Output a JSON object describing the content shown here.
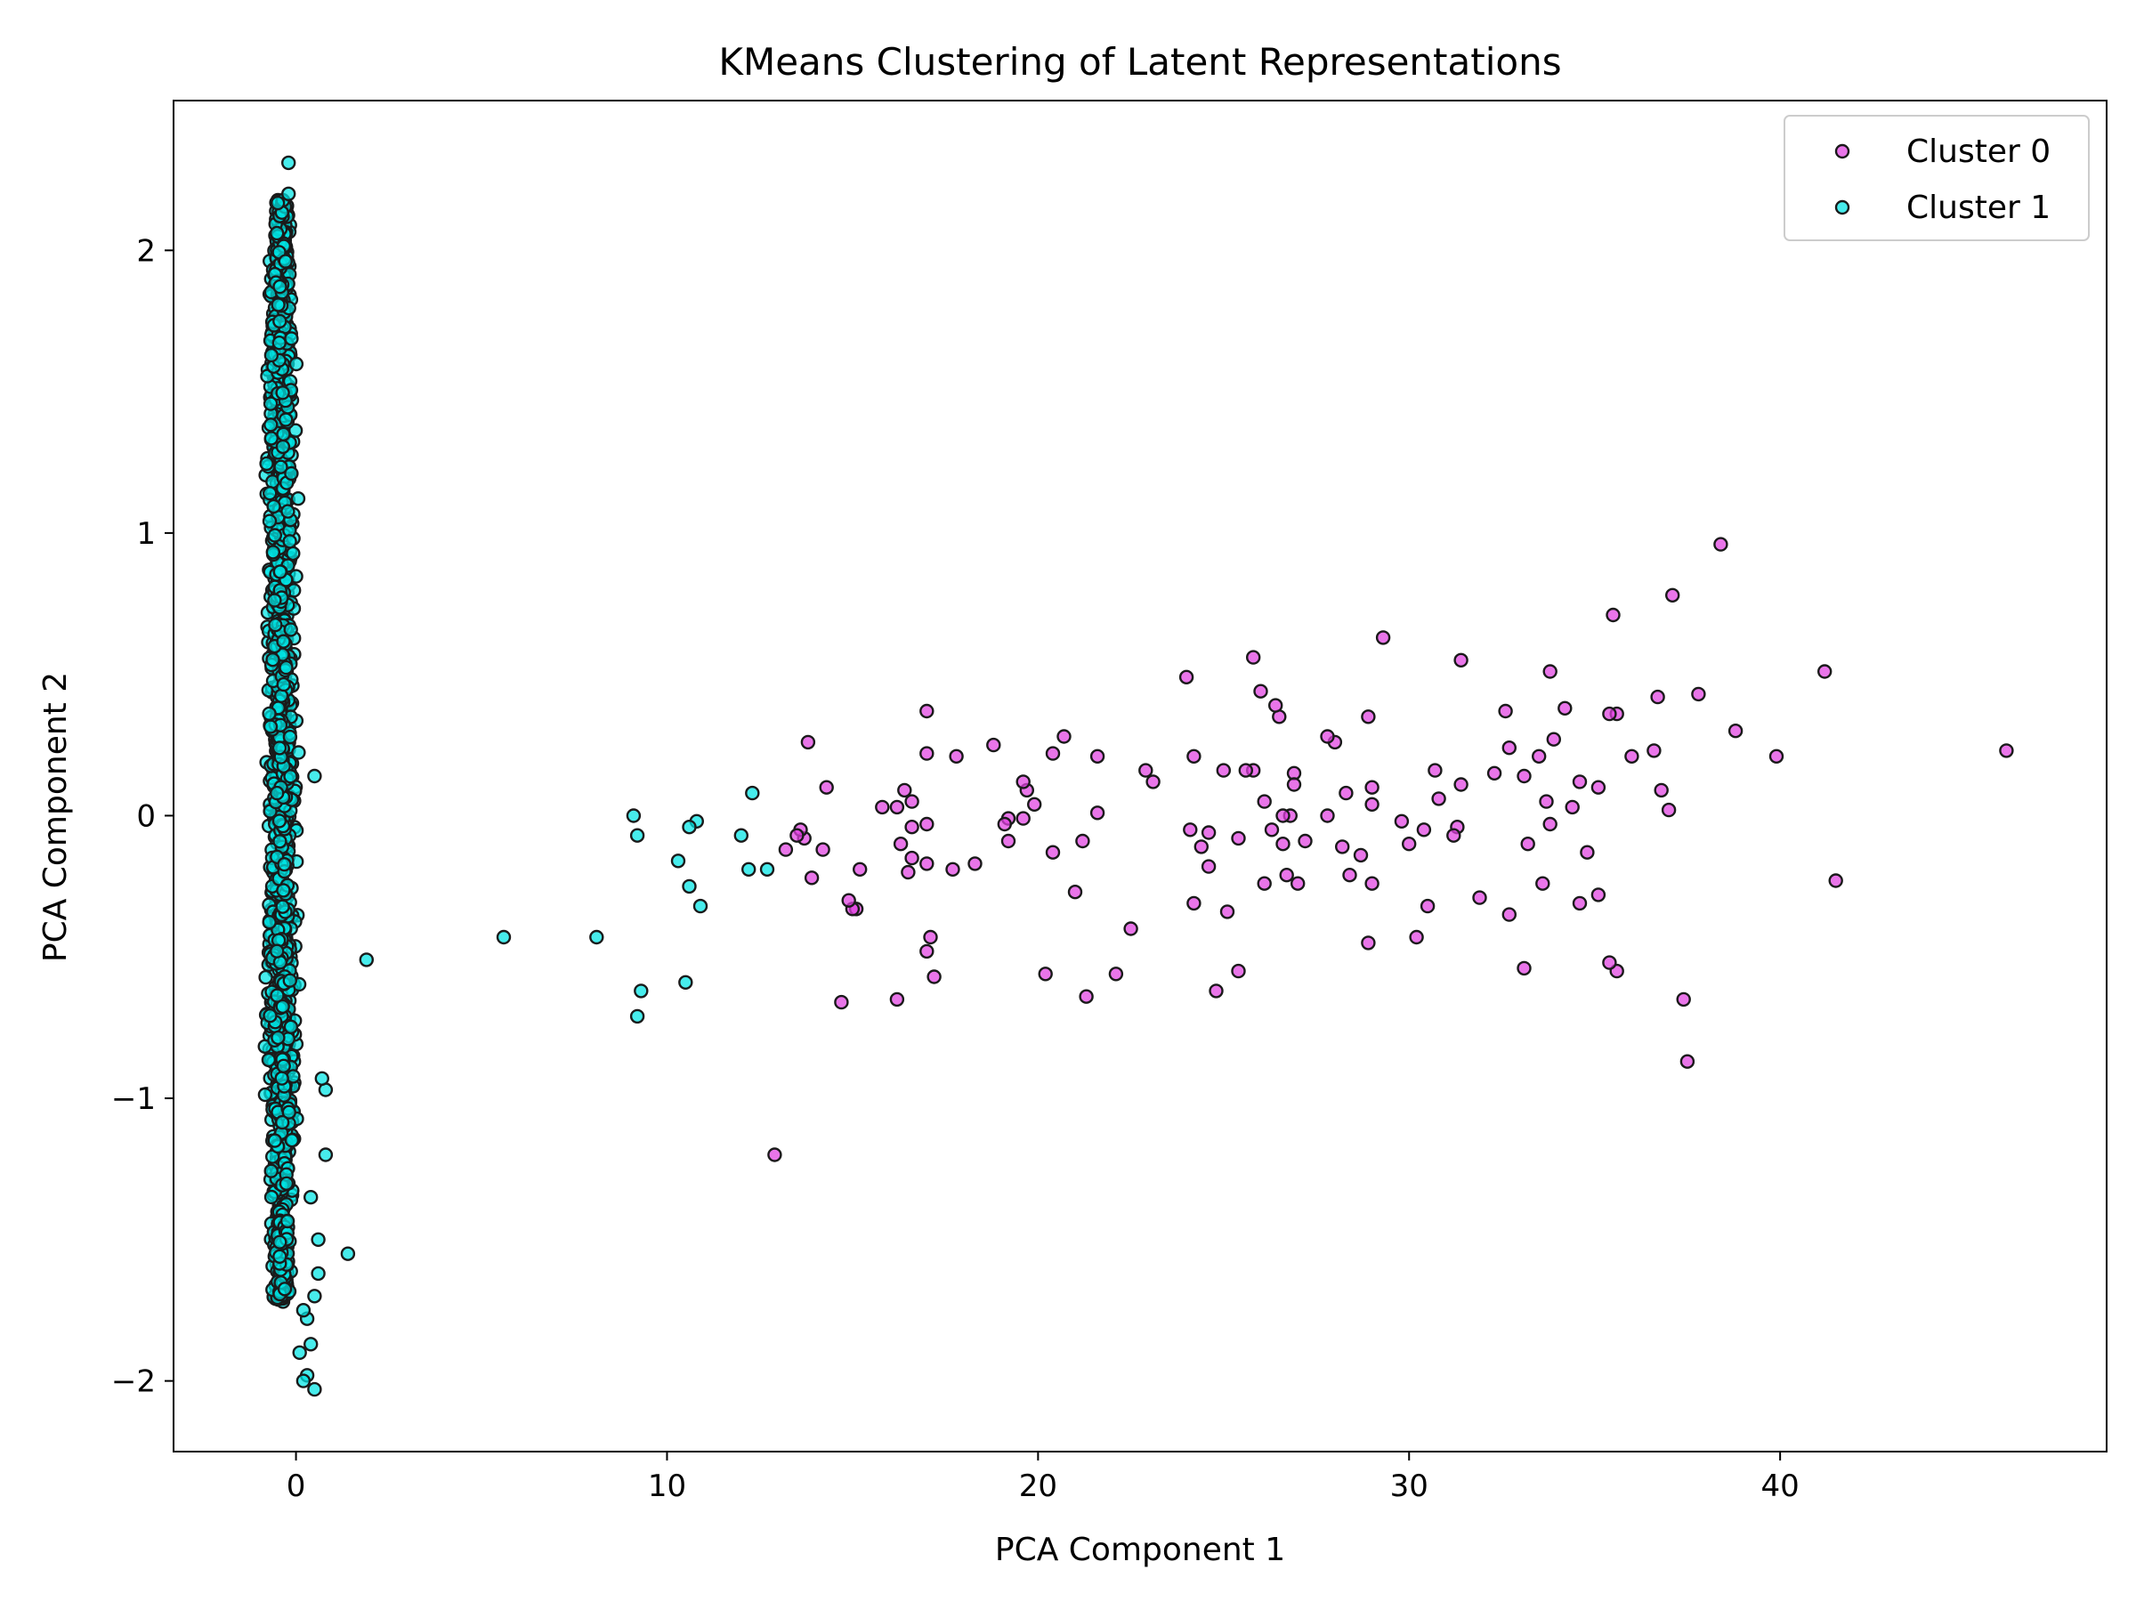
{
  "chart_data": {
    "type": "scatter",
    "title": "KMeans Clustering of Latent Representations",
    "xlabel": "PCA Component 1",
    "ylabel": "PCA Component 2",
    "xlim": [
      -3.3,
      48.8
    ],
    "ylim": [
      -2.25,
      2.53
    ],
    "xticks": [
      0,
      10,
      20,
      30,
      40
    ],
    "yticks": [
      -2,
      -1,
      0,
      1,
      2
    ],
    "xtick_labels": [
      "0",
      "10",
      "20",
      "30",
      "40"
    ],
    "ytick_labels": [
      "−2",
      "−1",
      "0",
      "1",
      "2"
    ],
    "grid": false,
    "legend_position": "top-right",
    "series": [
      {
        "name": "Cluster 0",
        "color": "#e040e0",
        "points": [
          [
            46.1,
            0.23
          ],
          [
            41.5,
            -0.23
          ],
          [
            41.2,
            0.51
          ],
          [
            39.9,
            0.21
          ],
          [
            38.8,
            0.3
          ],
          [
            38.4,
            0.96
          ],
          [
            37.8,
            0.43
          ],
          [
            37.5,
            -0.87
          ],
          [
            37.4,
            -0.65
          ],
          [
            37.1,
            0.78
          ],
          [
            37.0,
            0.02
          ],
          [
            36.8,
            0.09
          ],
          [
            36.7,
            0.42
          ],
          [
            36.6,
            0.23
          ],
          [
            36.0,
            0.21
          ],
          [
            35.6,
            0.36
          ],
          [
            35.6,
            -0.55
          ],
          [
            35.5,
            0.71
          ],
          [
            35.4,
            0.36
          ],
          [
            35.4,
            -0.52
          ],
          [
            35.1,
            0.1
          ],
          [
            35.1,
            -0.28
          ],
          [
            34.8,
            -0.13
          ],
          [
            34.6,
            0.12
          ],
          [
            34.6,
            -0.31
          ],
          [
            34.4,
            0.03
          ],
          [
            34.2,
            0.38
          ],
          [
            33.9,
            0.27
          ],
          [
            33.8,
            -0.03
          ],
          [
            33.8,
            0.51
          ],
          [
            33.7,
            0.05
          ],
          [
            33.6,
            -0.24
          ],
          [
            33.5,
            0.21
          ],
          [
            33.2,
            -0.1
          ],
          [
            33.1,
            0.14
          ],
          [
            33.1,
            -0.54
          ],
          [
            32.7,
            0.24
          ],
          [
            32.7,
            -0.35
          ],
          [
            32.6,
            0.37
          ],
          [
            32.3,
            0.15
          ],
          [
            31.9,
            -0.29
          ],
          [
            31.4,
            0.11
          ],
          [
            31.4,
            0.55
          ],
          [
            31.3,
            -0.04
          ],
          [
            31.2,
            -0.07
          ],
          [
            30.8,
            0.06
          ],
          [
            30.7,
            0.16
          ],
          [
            30.5,
            -0.32
          ],
          [
            30.4,
            -0.05
          ],
          [
            30.2,
            -0.43
          ],
          [
            30.0,
            -0.1
          ],
          [
            29.8,
            -0.02
          ],
          [
            29.3,
            0.63
          ],
          [
            29.0,
            -0.24
          ],
          [
            29.0,
            0.1
          ],
          [
            29.0,
            0.04
          ],
          [
            28.9,
            -0.45
          ],
          [
            28.9,
            0.35
          ],
          [
            28.7,
            -0.14
          ],
          [
            28.4,
            -0.21
          ],
          [
            28.3,
            0.08
          ],
          [
            28.2,
            -0.11
          ],
          [
            28.0,
            0.26
          ],
          [
            27.8,
            0.28
          ],
          [
            27.8,
            0.0
          ],
          [
            27.2,
            -0.09
          ],
          [
            27.0,
            -0.24
          ],
          [
            26.9,
            0.15
          ],
          [
            26.9,
            0.11
          ],
          [
            26.8,
            0.0
          ],
          [
            26.7,
            -0.21
          ],
          [
            26.6,
            0.0
          ],
          [
            26.6,
            -0.1
          ],
          [
            26.5,
            0.35
          ],
          [
            26.4,
            0.39
          ],
          [
            26.3,
            -0.05
          ],
          [
            26.1,
            0.05
          ],
          [
            26.1,
            -0.24
          ],
          [
            26.0,
            0.44
          ],
          [
            25.8,
            0.56
          ],
          [
            25.8,
            0.16
          ],
          [
            25.6,
            0.16
          ],
          [
            25.4,
            -0.08
          ],
          [
            25.4,
            -0.55
          ],
          [
            25.1,
            -0.34
          ],
          [
            25.0,
            0.16
          ],
          [
            24.8,
            -0.62
          ],
          [
            24.6,
            -0.06
          ],
          [
            24.6,
            -0.18
          ],
          [
            24.4,
            -0.11
          ],
          [
            24.2,
            -0.31
          ],
          [
            24.2,
            0.21
          ],
          [
            24.1,
            -0.05
          ],
          [
            24.0,
            0.49
          ],
          [
            23.1,
            0.12
          ],
          [
            22.9,
            0.16
          ],
          [
            22.5,
            -0.4
          ],
          [
            22.1,
            -0.56
          ],
          [
            21.6,
            0.21
          ],
          [
            21.6,
            0.01
          ],
          [
            21.3,
            -0.64
          ],
          [
            21.2,
            -0.09
          ],
          [
            21.0,
            -0.27
          ],
          [
            20.7,
            0.28
          ],
          [
            20.4,
            0.22
          ],
          [
            20.4,
            -0.13
          ],
          [
            20.2,
            -0.56
          ],
          [
            19.9,
            0.04
          ],
          [
            19.7,
            0.09
          ],
          [
            19.6,
            0.12
          ],
          [
            19.6,
            -0.01
          ],
          [
            19.2,
            -0.01
          ],
          [
            19.2,
            -0.09
          ],
          [
            19.1,
            -0.03
          ],
          [
            18.8,
            0.25
          ],
          [
            18.3,
            -0.17
          ],
          [
            17.8,
            0.21
          ],
          [
            17.7,
            -0.19
          ],
          [
            17.2,
            -0.57
          ],
          [
            17.1,
            -0.43
          ],
          [
            17.0,
            -0.03
          ],
          [
            17.0,
            -0.17
          ],
          [
            17.0,
            0.37
          ],
          [
            17.0,
            -0.48
          ],
          [
            17.0,
            0.22
          ],
          [
            16.6,
            -0.04
          ],
          [
            16.6,
            0.05
          ],
          [
            16.6,
            -0.15
          ],
          [
            16.5,
            -0.2
          ],
          [
            16.4,
            0.09
          ],
          [
            16.3,
            -0.1
          ],
          [
            16.2,
            -0.65
          ],
          [
            16.2,
            0.03
          ],
          [
            15.8,
            0.03
          ],
          [
            15.2,
            -0.19
          ],
          [
            15.1,
            -0.33
          ],
          [
            15.0,
            -0.33
          ],
          [
            14.9,
            -0.3
          ],
          [
            14.7,
            -0.66
          ],
          [
            14.3,
            0.1
          ],
          [
            14.2,
            -0.12
          ],
          [
            13.9,
            -0.22
          ],
          [
            13.8,
            0.26
          ],
          [
            13.7,
            -0.08
          ],
          [
            13.6,
            -0.05
          ],
          [
            13.5,
            -0.07
          ],
          [
            13.2,
            -0.12
          ],
          [
            12.9,
            -1.2
          ]
        ]
      },
      {
        "name": "Cluster 1",
        "color": "#00e5e5",
        "points": [
          [
            12.7,
            -0.19
          ],
          [
            12.3,
            0.08
          ],
          [
            12.2,
            -0.19
          ],
          [
            12.0,
            -0.07
          ],
          [
            10.9,
            -0.32
          ],
          [
            10.8,
            -0.02
          ],
          [
            10.6,
            -0.04
          ],
          [
            10.6,
            -0.25
          ],
          [
            10.5,
            -0.59
          ],
          [
            10.3,
            -0.16
          ],
          [
            9.3,
            -0.62
          ],
          [
            9.2,
            -0.07
          ],
          [
            9.2,
            -0.71
          ],
          [
            9.1,
            0.0
          ],
          [
            8.1,
            -0.43
          ],
          [
            5.6,
            -0.43
          ],
          [
            1.9,
            -0.51
          ],
          [
            1.4,
            -1.55
          ],
          [
            0.8,
            -0.97
          ],
          [
            0.8,
            -1.2
          ],
          [
            0.7,
            -0.93
          ],
          [
            0.6,
            -1.5
          ],
          [
            0.6,
            -1.62
          ],
          [
            0.5,
            0.14
          ],
          [
            0.5,
            -1.7
          ],
          [
            0.5,
            -2.03
          ],
          [
            0.4,
            -1.35
          ],
          [
            0.4,
            -1.87
          ],
          [
            0.3,
            -1.98
          ],
          [
            0.3,
            -1.78
          ],
          [
            0.2,
            -1.75
          ],
          [
            0.1,
            -1.9
          ],
          [
            0.2,
            -2.0
          ],
          [
            -0.2,
            2.31
          ],
          [
            -0.2,
            2.2
          ]
        ],
        "main_cluster": {
          "x_center": -0.4,
          "x_spread": 0.3,
          "y_range": [
            -1.72,
            2.18
          ],
          "count": 1600
        }
      }
    ]
  }
}
